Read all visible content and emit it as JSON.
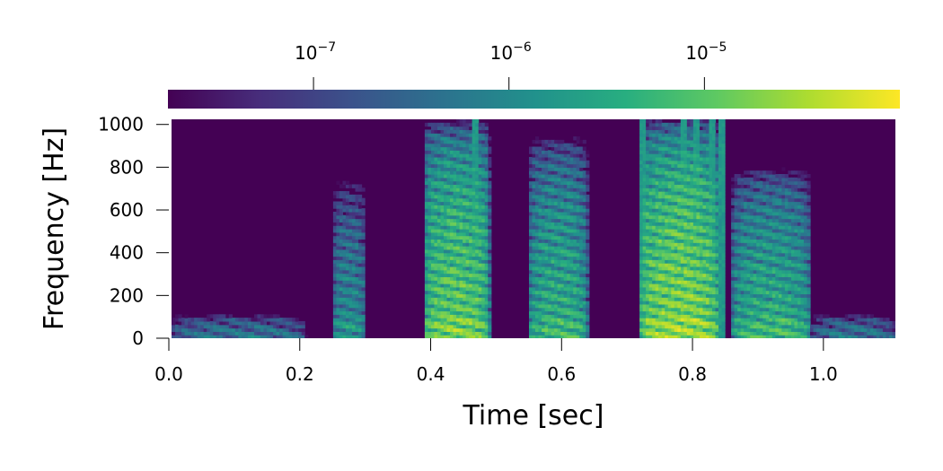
{
  "chart_data": {
    "type": "heatmap",
    "title": "",
    "xlabel": "Time [sec]",
    "ylabel": "Frequency [Hz]",
    "xlim": [
      0.0,
      1.11
    ],
    "ylim": [
      0,
      1024
    ],
    "xticks": [
      0.0,
      0.2,
      0.4,
      0.6,
      0.8,
      1.0
    ],
    "xtick_labels": [
      "0.0",
      "0.2",
      "0.4",
      "0.6",
      "0.8",
      "1.0"
    ],
    "yticks": [
      0,
      200,
      400,
      600,
      800,
      1000
    ],
    "ytick_labels": [
      "0",
      "200",
      "400",
      "600",
      "800",
      "1000"
    ],
    "grid": false,
    "colormap": "viridis",
    "colorbar": {
      "orientation": "horizontal",
      "placement": "top",
      "scale": "log",
      "range": [
        1.8e-08,
        0.0001
      ],
      "ticks": [
        1e-07,
        1e-06,
        1e-05
      ],
      "tick_base": "10",
      "tick_exponents": [
        "−7",
        "−6",
        "−5"
      ]
    },
    "energy_bursts": [
      {
        "time_start": 0.0,
        "time_end": 0.21,
        "freq_max": 120,
        "level": 1e-06
      },
      {
        "time_start": 0.25,
        "time_end": 0.3,
        "freq_max": 750,
        "level": 3e-06
      },
      {
        "time_start": 0.39,
        "time_end": 0.49,
        "freq_max": 1024,
        "level": 3e-05
      },
      {
        "time_start": 0.55,
        "time_end": 0.64,
        "freq_max": 950,
        "level": 1e-05
      },
      {
        "time_start": 0.72,
        "time_end": 0.84,
        "freq_max": 1024,
        "level": 5e-05
      },
      {
        "time_start": 0.86,
        "time_end": 0.98,
        "freq_max": 800,
        "level": 1e-05
      },
      {
        "time_start": 0.98,
        "time_end": 1.11,
        "freq_max": 120,
        "level": 1e-06
      }
    ],
    "broadband_columns": [
      0.466,
      0.723,
      0.788,
      0.808,
      0.83,
      0.843
    ]
  }
}
